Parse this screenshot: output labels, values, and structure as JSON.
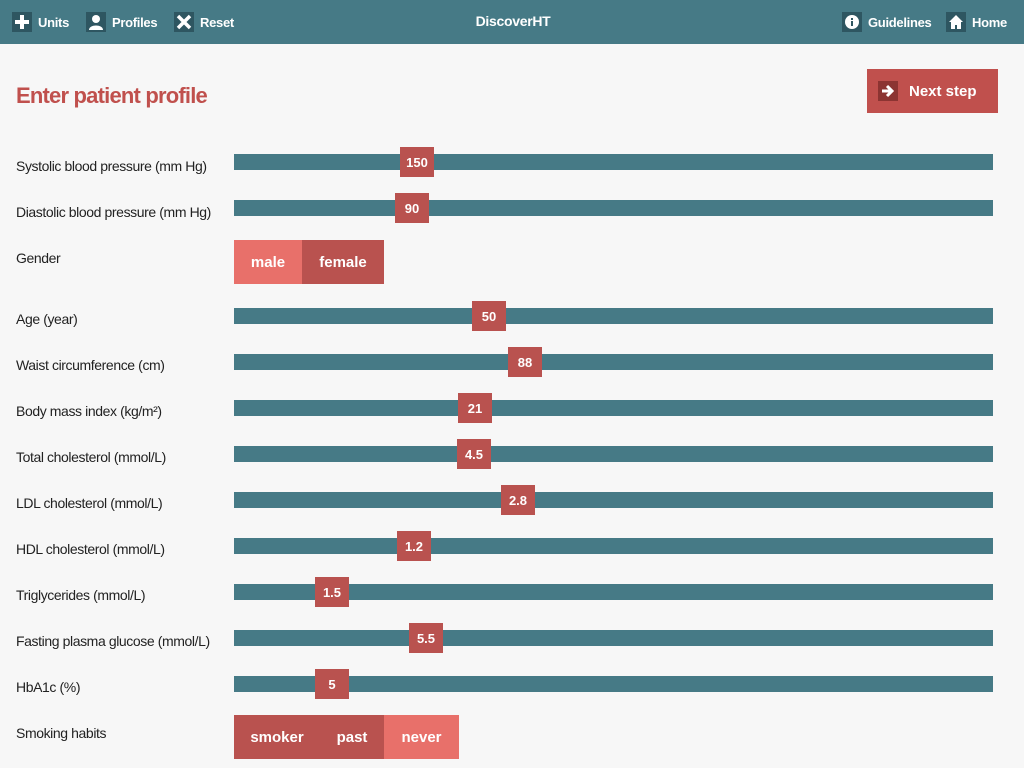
{
  "nav": {
    "left": [
      "Units",
      "Profiles",
      "Reset"
    ],
    "title": "DiscoverHT",
    "right": [
      "Guidelines",
      "Home"
    ]
  },
  "page": {
    "heading": "Enter patient profile",
    "next_button": "Next step"
  },
  "fields": [
    {
      "label": "Systolic blood pressure (mm Hg)",
      "value": 150
    },
    {
      "label": "Diastolic blood pressure (mm Hg)",
      "value": 90
    },
    {
      "label": "Gender",
      "options": [
        "male",
        "female"
      ]
    },
    {
      "label": "Age (year)",
      "value": 50
    },
    {
      "label": "Waist circumference (cm)",
      "value": 88
    },
    {
      "label": "Body mass index (kg/m²)",
      "value": 21
    },
    {
      "label": "Total cholesterol (mmol/L)",
      "value": 4.5
    },
    {
      "label": "LDL cholesterol (mmol/L)",
      "value": 2.8
    },
    {
      "label": "HDL cholesterol (mmol/L)",
      "value": 1.2
    },
    {
      "label": "Triglycerides (mmol/L)",
      "value": 1.5
    },
    {
      "label": "Fasting plasma glucose (mmol/L)",
      "value": 5.5
    },
    {
      "label": "HbA1c (%)",
      "value": 5
    },
    {
      "label": "Smoking habits",
      "options": [
        "smoker",
        "past",
        "never"
      ]
    }
  ]
}
